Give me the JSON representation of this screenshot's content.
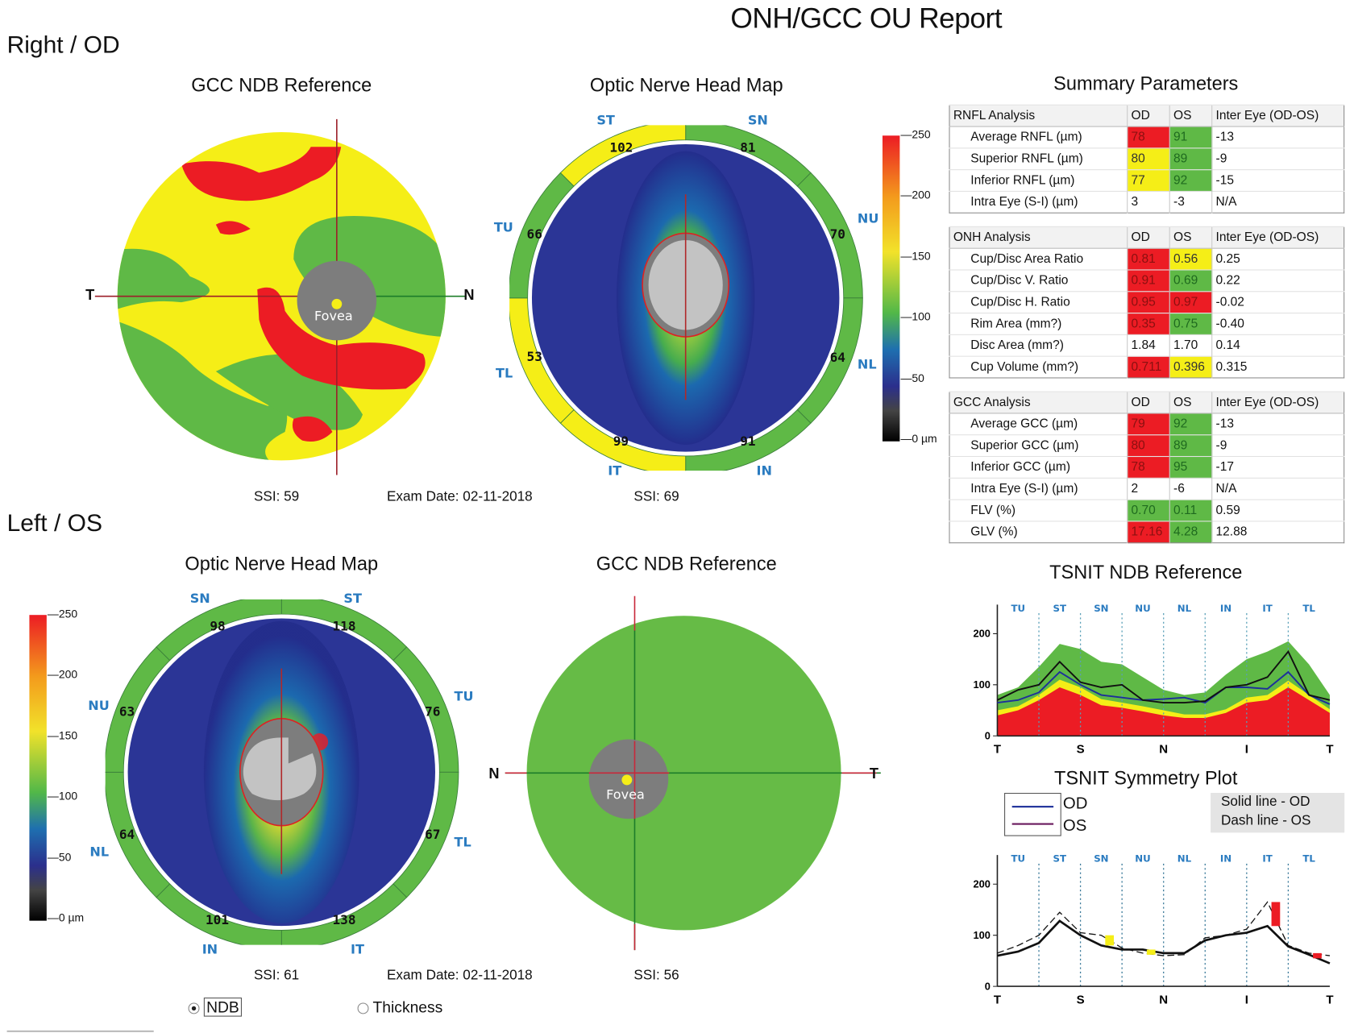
{
  "report_title": "ONH/GCC OU Report",
  "right_eye": {
    "title": "Right / OD",
    "gcc_panel": {
      "title": "GCC NDB Reference",
      "axis_left": "T",
      "axis_right": "N",
      "fovea_label": "Fovea",
      "ssi": "SSI: 59",
      "exam_date": "Exam Date: 02-11-2018"
    },
    "onh_panel": {
      "title": "Optic Nerve Head Map",
      "ssi": "SSI: 69",
      "sectors": {
        "ST": "ST",
        "SN": "SN",
        "NU": "NU",
        "NL": "NL",
        "IN": "IN",
        "IT": "IT",
        "TL": "TL",
        "TU": "TU"
      },
      "ring_values": {
        "ST": "102",
        "SN": "81",
        "NU": "70",
        "NL": "64",
        "IN": "91",
        "IT": "99",
        "TL": "53",
        "TU": "66"
      },
      "ring_status": {
        "ST": "yellow",
        "SN": "green",
        "NU": "green",
        "NL": "green",
        "IN": "green",
        "IT": "yellow",
        "TL": "yellow",
        "TU": "green"
      }
    },
    "colorbar": {
      "ticks": [
        "250",
        "200",
        "150",
        "100",
        "50",
        "0 µm"
      ]
    }
  },
  "left_eye": {
    "title": "Left / OS",
    "onh_panel": {
      "title": "Optic Nerve Head Map",
      "ssi": "SSI: 61",
      "exam_date": "Exam Date: 02-11-2018",
      "sectors": {
        "SN": "SN",
        "ST": "ST",
        "TU": "TU",
        "TL": "TL",
        "IT": "IT",
        "IN": "IN",
        "NL": "NL",
        "NU": "NU"
      },
      "ring_values": {
        "SN": "98",
        "ST": "118",
        "TU": "76",
        "TL": "67",
        "IT": "138",
        "IN": "101",
        "NL": "64",
        "NU": "63"
      },
      "ring_status": {
        "SN": "green",
        "ST": "green",
        "TU": "green",
        "TL": "green",
        "IT": "green",
        "IN": "green",
        "NL": "green",
        "NU": "green"
      }
    },
    "gcc_panel": {
      "title": "GCC NDB Reference",
      "axis_left": "N",
      "axis_right": "T",
      "fovea_label": "Fovea",
      "ssi": "SSI: 56"
    },
    "colorbar": {
      "ticks": [
        "250",
        "200",
        "150",
        "100",
        "50",
        "0 µm"
      ]
    }
  },
  "view_mode": {
    "options": [
      "NDB",
      "Thickness"
    ],
    "selected": "NDB"
  },
  "summary": {
    "title": "Summary Parameters",
    "tables": [
      {
        "header": [
          "RNFL Analysis",
          "OD",
          "OS",
          "Inter Eye (OD-OS)"
        ],
        "rows": [
          {
            "label": "Average RNFL (µm)",
            "od": "78",
            "os": "91",
            "inter": "-13",
            "od_status": "red",
            "os_status": "green"
          },
          {
            "label": "Superior RNFL (µm)",
            "od": "80",
            "os": "89",
            "inter": "-9",
            "od_status": "yellow",
            "os_status": "green"
          },
          {
            "label": "Inferior RNFL (µm)",
            "od": "77",
            "os": "92",
            "inter": "-15",
            "od_status": "yellow",
            "os_status": "green"
          },
          {
            "label": "Intra Eye (S-I) (µm)",
            "od": "3",
            "os": "-3",
            "inter": "N/A",
            "od_status": "",
            "os_status": ""
          }
        ]
      },
      {
        "header": [
          "ONH Analysis",
          "OD",
          "OS",
          "Inter Eye (OD-OS)"
        ],
        "rows": [
          {
            "label": "Cup/Disc Area Ratio",
            "od": "0.81",
            "os": "0.56",
            "inter": "0.25",
            "od_status": "red",
            "os_status": "yellow"
          },
          {
            "label": "Cup/Disc V. Ratio",
            "od": "0.91",
            "os": "0.69",
            "inter": "0.22",
            "od_status": "red",
            "os_status": "green"
          },
          {
            "label": "Cup/Disc H. Ratio",
            "od": "0.95",
            "os": "0.97",
            "inter": "-0.02",
            "od_status": "red",
            "os_status": "red"
          },
          {
            "label": "Rim Area (mm?)",
            "od": "0.35",
            "os": "0.75",
            "inter": "-0.40",
            "od_status": "red",
            "os_status": "green"
          },
          {
            "label": "Disc Area (mm?)",
            "od": "1.84",
            "os": "1.70",
            "inter": "0.14",
            "od_status": "",
            "os_status": ""
          },
          {
            "label": "Cup Volume (mm?)",
            "od": "0.711",
            "os": "0.396",
            "inter": "0.315",
            "od_status": "red",
            "os_status": "yellow"
          }
        ]
      },
      {
        "header": [
          "GCC Analysis",
          "OD",
          "OS",
          "Inter Eye (OD-OS)"
        ],
        "rows": [
          {
            "label": "Average GCC (µm)",
            "od": "79",
            "os": "92",
            "inter": "-13",
            "od_status": "red",
            "os_status": "green"
          },
          {
            "label": "Superior GCC (µm)",
            "od": "80",
            "os": "89",
            "inter": "-9",
            "od_status": "red",
            "os_status": "green"
          },
          {
            "label": "Inferior GCC (µm)",
            "od": "78",
            "os": "95",
            "inter": "-17",
            "od_status": "red",
            "os_status": "green"
          },
          {
            "label": "Intra Eye (S-I) (µm)",
            "od": "2",
            "os": "-6",
            "inter": "N/A",
            "od_status": "",
            "os_status": ""
          },
          {
            "label": "FLV (%)",
            "od": "0.70",
            "os": "0.11",
            "inter": "0.59",
            "od_status": "green",
            "os_status": "green"
          },
          {
            "label": "GLV (%)",
            "od": "17.16",
            "os": "4.28",
            "inter": "12.88",
            "od_status": "red",
            "os_status": "green"
          }
        ]
      }
    ]
  },
  "legend": {
    "od": "OD",
    "os": "OS",
    "note_solid": "Solid line - OD",
    "note_dash": "Dash line - OS"
  },
  "colors": {
    "red": "#ec1c24",
    "yellow": "#f5ee17",
    "green": "#5fb946",
    "sector_blue": "#2a7bc0",
    "od_line": "#1d2f9a",
    "os_line": "#6a1b5e"
  },
  "chart_data": [
    {
      "type": "area",
      "title": "TSNIT NDB Reference",
      "xlabel": "",
      "ylabel": "",
      "x_ticks": [
        "T",
        "S",
        "N",
        "I",
        "T"
      ],
      "sector_labels": [
        "TU",
        "ST",
        "SN",
        "NU",
        "NL",
        "IN",
        "IT",
        "TL"
      ],
      "y_ticks": [
        "0",
        "100",
        "200"
      ],
      "ylim": [
        0,
        240
      ],
      "x": [
        0,
        16,
        32,
        48,
        64,
        80,
        96,
        112,
        128,
        144,
        160,
        176,
        192,
        208,
        224,
        240,
        256
      ],
      "bands": {
        "red_upper": [
          40,
          50,
          70,
          95,
          80,
          60,
          55,
          48,
          40,
          35,
          35,
          45,
          65,
          70,
          95,
          70,
          45
        ],
        "yellow_upper": [
          50,
          58,
          80,
          110,
          95,
          72,
          65,
          58,
          50,
          42,
          42,
          52,
          75,
          80,
          108,
          80,
          52
        ],
        "green_upper": [
          80,
          95,
          135,
          180,
          170,
          145,
          140,
          115,
          90,
          80,
          85,
          120,
          150,
          165,
          185,
          140,
          80
        ]
      },
      "series": [
        {
          "name": "OD",
          "values": [
            65,
            70,
            85,
            125,
            100,
            80,
            75,
            70,
            72,
            75,
            65,
            95,
            95,
            92,
            125,
            80,
            62
          ]
        },
        {
          "name": "OS",
          "values": [
            70,
            90,
            100,
            145,
            105,
            95,
            100,
            70,
            65,
            65,
            68,
            95,
            100,
            115,
            165,
            80,
            70
          ]
        }
      ]
    },
    {
      "type": "line",
      "title": "TSNIT Symmetry Plot",
      "xlabel": "",
      "ylabel": "",
      "x_ticks": [
        "T",
        "S",
        "N",
        "I",
        "T"
      ],
      "sector_labels": [
        "TU",
        "ST",
        "SN",
        "NU",
        "NL",
        "IN",
        "IT",
        "TL"
      ],
      "y_ticks": [
        "0",
        "100",
        "200"
      ],
      "ylim": [
        0,
        240
      ],
      "x": [
        0,
        16,
        32,
        48,
        64,
        80,
        96,
        112,
        128,
        144,
        160,
        176,
        192,
        208,
        224,
        240,
        256
      ],
      "series": [
        {
          "name": "OD (solid)",
          "values": [
            60,
            68,
            85,
            128,
            100,
            80,
            72,
            72,
            65,
            65,
            90,
            100,
            105,
            118,
            78,
            62,
            45
          ]
        },
        {
          "name": "OS (dashed)",
          "values": [
            65,
            80,
            100,
            145,
            105,
            100,
            75,
            65,
            60,
            62,
            95,
            100,
            112,
            165,
            80,
            65,
            60
          ]
        }
      ],
      "asymmetry_highlights": [
        {
          "sector": "SN",
          "color": "yellow"
        },
        {
          "sector": "NU",
          "color": "yellow"
        },
        {
          "sector": "IT",
          "color": "red"
        },
        {
          "sector": "TL",
          "color": "red"
        }
      ]
    }
  ]
}
